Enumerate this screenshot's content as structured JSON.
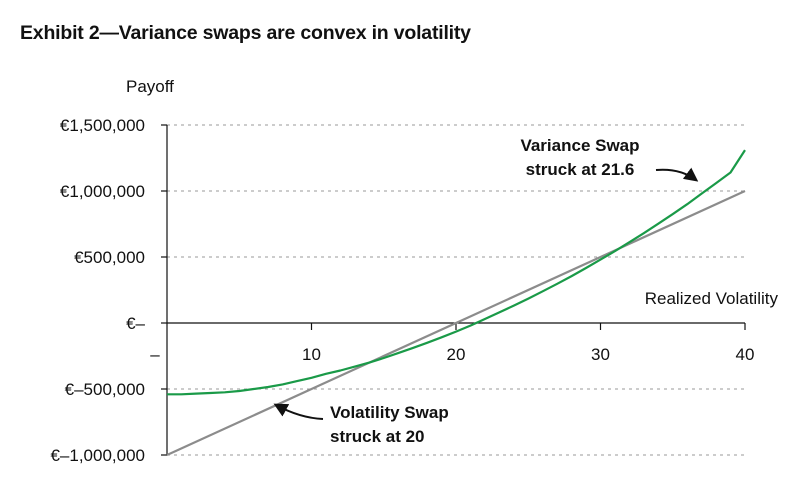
{
  "title_number": "Exhibit 2",
  "title_dash": "—",
  "title_text": "Variance swaps are convex in volatility",
  "chart_data": {
    "type": "line",
    "ylabel": "Payoff",
    "xlabel": "Realized Volatility",
    "xlim": [
      0,
      40
    ],
    "ylim": [
      -1000000,
      1500000
    ],
    "x_ticks": [
      {
        "value": 0,
        "label": "–"
      },
      {
        "value": 10,
        "label": "10"
      },
      {
        "value": 20,
        "label": "20"
      },
      {
        "value": 30,
        "label": "30"
      },
      {
        "value": 40,
        "label": "40"
      }
    ],
    "y_ticks": [
      {
        "value": 1500000,
        "label": "€1,500,000"
      },
      {
        "value": 1000000,
        "label": "€1,000,000"
      },
      {
        "value": 500000,
        "label": "€500,000"
      },
      {
        "value": 0,
        "label": "€–"
      },
      {
        "value": -500000,
        "label": "€–500,000"
      },
      {
        "value": -1000000,
        "label": "€–1,000,000"
      }
    ],
    "grid": "horizontal-dashed",
    "series": [
      {
        "name": "Volatility Swap struck at 20",
        "color": "#8c8c8c",
        "x": [
          0,
          40
        ],
        "y": [
          -1000000,
          1000000
        ]
      },
      {
        "name": "Variance Swap struck at 21.6",
        "color": "#1a9a48",
        "x": [
          0,
          1,
          2,
          3,
          4,
          5,
          6,
          7,
          8,
          9,
          10,
          11,
          12,
          13,
          14,
          15,
          16,
          17,
          18,
          19,
          20,
          21,
          22,
          23,
          24,
          25,
          26,
          27,
          28,
          29,
          30,
          31,
          32,
          33,
          34,
          35,
          36,
          37,
          38,
          39,
          40
        ],
        "y": [
          -540000,
          -540000,
          -535000,
          -530000,
          -525000,
          -515000,
          -500000,
          -485000,
          -465000,
          -440000,
          -415000,
          -385000,
          -360000,
          -330000,
          -300000,
          -265000,
          -228000,
          -190000,
          -150000,
          -108000,
          -65000,
          -20000,
          30000,
          80000,
          132000,
          185000,
          240000,
          297000,
          355000,
          417000,
          480000,
          545000,
          612000,
          680000,
          752000,
          825000,
          900000,
          980000,
          1060000,
          1140000,
          1310000
        ]
      }
    ],
    "annotations": [
      {
        "id": "variance",
        "line1": "Variance Swap",
        "line2": "struck at 21.6"
      },
      {
        "id": "volatility",
        "line1": "Volatility Swap",
        "line2": "struck at 20"
      }
    ]
  }
}
